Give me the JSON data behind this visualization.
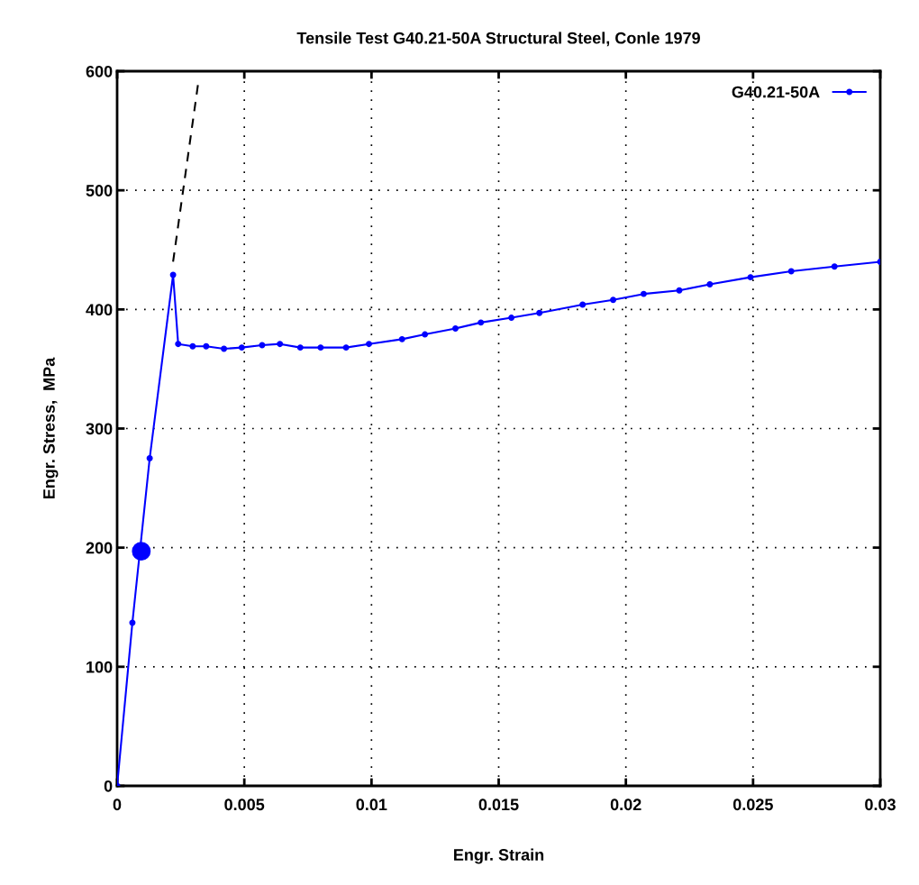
{
  "chart_data": {
    "type": "line",
    "title": "Tensile Test G40.21-50A Structural Steel, Conle 1979",
    "xlabel": "Engr. Strain",
    "ylabel": "Engr. Stress,  MPa",
    "xlim": [
      0,
      0.03
    ],
    "ylim": [
      0,
      600
    ],
    "xticks": [
      0,
      0.005,
      0.01,
      0.015,
      0.02,
      0.025,
      0.03
    ],
    "yticks": [
      0,
      100,
      200,
      300,
      400,
      500,
      600
    ],
    "grid": true,
    "legend": "top right",
    "marker": "circle",
    "line_style": "solid",
    "series": [
      {
        "name": "G40.21-50A",
        "color": "#0000ff",
        "x": [
          0,
          0.0006,
          0.00128,
          0.0022,
          0.0024,
          0.00297,
          0.0035,
          0.0042,
          0.0049,
          0.0057,
          0.0064,
          0.0072,
          0.008,
          0.009,
          0.0099,
          0.0112,
          0.0121,
          0.0133,
          0.0143,
          0.0155,
          0.0166,
          0.0183,
          0.0195,
          0.0207,
          0.0221,
          0.0233,
          0.0249,
          0.0265,
          0.0282,
          0.03
        ],
        "values": [
          0,
          137,
          275,
          429,
          371,
          369,
          369,
          367,
          368,
          370,
          371,
          368,
          368,
          368,
          371,
          375,
          379,
          384,
          389,
          393,
          397,
          404,
          408,
          413,
          416,
          421,
          427,
          432,
          436,
          440
        ]
      },
      {
        "type": "line",
        "color": "#000000",
        "line_style": "dashed",
        "marker": "none",
        "x": [
          0.0022,
          0.0032
        ],
        "values": [
          440,
          592
        ]
      },
      {
        "type": "scatter",
        "color": "#0000ff",
        "marker": "circle",
        "x": [
          0.00095
        ],
        "values": [
          197
        ]
      }
    ]
  }
}
